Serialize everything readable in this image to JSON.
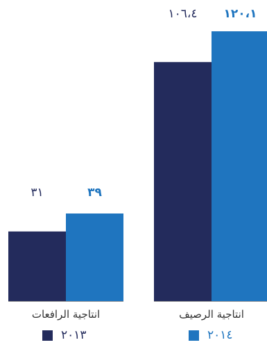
{
  "chart_data": {
    "type": "bar",
    "categories": [
      "انتاجية الرافعات",
      "انتاجية الرصيف"
    ],
    "series": [
      {
        "name": "٢٠١٣",
        "values": [
          31,
          106.4
        ],
        "value_labels": [
          "٣١",
          "١٠٦،٤"
        ],
        "color": "#232b5c"
      },
      {
        "name": "٢٠١٤",
        "values": [
          39,
          120.1
        ],
        "value_labels": [
          "٣٩",
          "١٢٠،١"
        ],
        "color": "#1f75bf"
      }
    ],
    "ylim": [
      0,
      120.1
    ],
    "grid": false,
    "legend_position": "bottom"
  },
  "colors": {
    "baseline": "#9a9a9a",
    "label_2013": "#232b5c",
    "label_2014": "#1f75bf"
  }
}
